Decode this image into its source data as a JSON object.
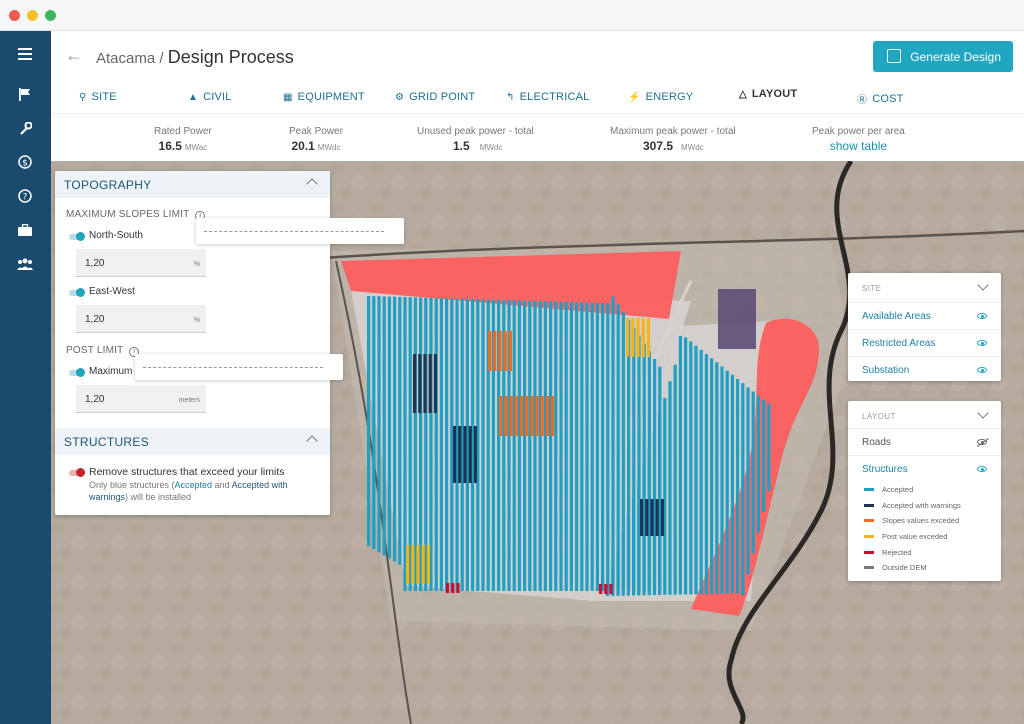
{
  "window": {
    "dots": [
      "#ec5b55",
      "#f6bf2d",
      "#3eb65b"
    ]
  },
  "header": {
    "breadcrumb_parent": "Atacama",
    "breadcrumb_sep": " / ",
    "title": "Design Process",
    "generate_label": "Generate Design"
  },
  "tabs": [
    {
      "label": "SITE",
      "icon": "location-pin-icon"
    },
    {
      "label": "CIVIL",
      "icon": "road-icon"
    },
    {
      "label": "EQUIPMENT",
      "icon": "equipment-icon"
    },
    {
      "label": "GRID POINT",
      "icon": "tower-icon"
    },
    {
      "label": "ELECTRICAL",
      "icon": "electrical-icon"
    },
    {
      "label": "ENERGY",
      "icon": "bolt-icon"
    },
    {
      "label": "LAYOUT",
      "icon": "layout-icon",
      "active": true
    },
    {
      "label": "COST",
      "icon": "dollar-icon"
    }
  ],
  "stats": [
    {
      "label": "Rated Power",
      "value": "16.5",
      "unit": "MWac"
    },
    {
      "label": "Peak Power",
      "value": "20.1",
      "unit": "MWdc"
    },
    {
      "label": "Unused peak power - total",
      "value": "1.5",
      "unit": "MWdc"
    },
    {
      "label": "Maximum peak power - total",
      "value": "307.5",
      "unit": "MWdc"
    },
    {
      "label": "Peak power per area",
      "link": "show table"
    }
  ],
  "topography": {
    "title": "TOPOGRAPHY",
    "slopes_label": "MAXIMUM SLOPES LIMIT",
    "north_south_label": "North-South",
    "north_south_value": "1,20",
    "north_south_unit": "%",
    "east_west_label": "East-West",
    "east_west_value": "1,20",
    "east_west_unit": "%",
    "post_label": "POST LIMIT",
    "maximum_label": "Maximum",
    "maximum_value": "1,20",
    "maximum_unit": "meters"
  },
  "structures": {
    "title": "STRUCTURES",
    "remove_label": "Remove structures that exceed your limits",
    "note_pre": "Only blue structures (",
    "note_accepted": "Accepted",
    "note_and": " and ",
    "note_warnings": "Accepted with warnings",
    "note_post": ") will be installed"
  },
  "site_panel": {
    "head": "SITE",
    "items": [
      "Available Areas",
      "Restricted Areas",
      "Substation"
    ]
  },
  "layout_panel": {
    "head": "LAYOUT",
    "roads": "Roads",
    "structures": "Structures",
    "legend": [
      {
        "label": "Accepted",
        "color": "#1f9fc4"
      },
      {
        "label": "Accepted with warnings",
        "color": "#1e3552"
      },
      {
        "label": "Slopes values exceded",
        "color": "#f26a22"
      },
      {
        "label": "Post value exceded",
        "color": "#f5b31b"
      },
      {
        "label": "Rejected",
        "color": "#c8102e"
      },
      {
        "label": "Outside DEM",
        "color": "#777777"
      }
    ]
  },
  "colors": {
    "accent": "#21a6c2",
    "sidebar": "#1b4a6f",
    "restricted": "#ff5a5a",
    "substation": "#5d4c77"
  }
}
